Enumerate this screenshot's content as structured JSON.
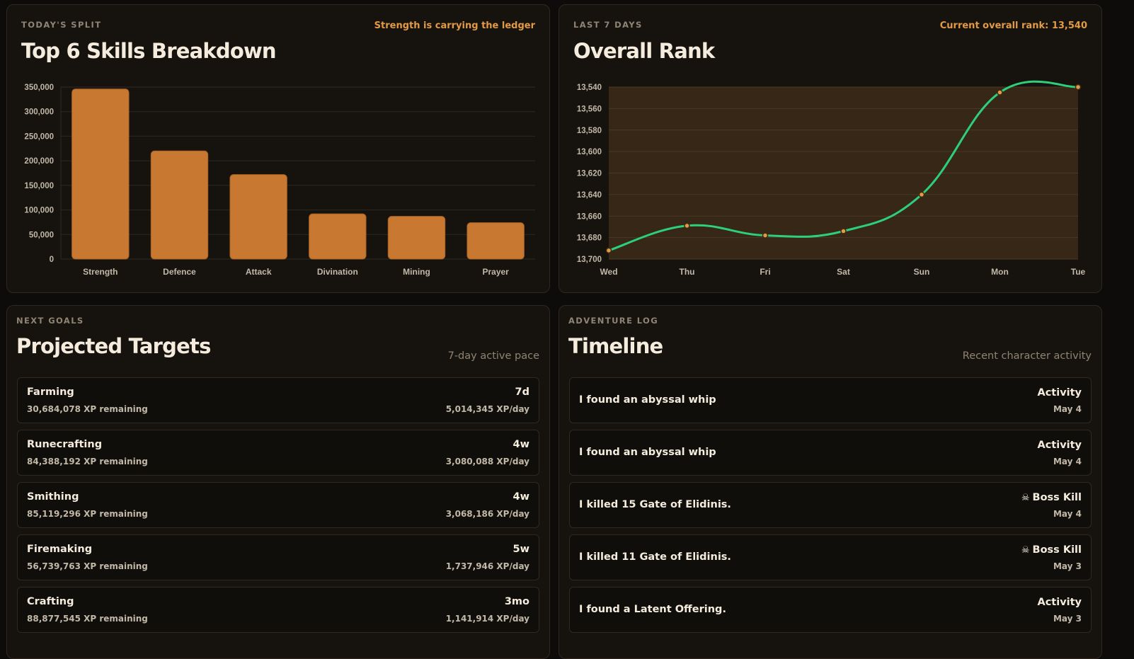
{
  "skills_panel": {
    "eyebrow": "TODAY'S SPLIT",
    "title": "Top 6 Skills Breakdown",
    "note": "Strength is carrying the ledger"
  },
  "rank_panel": {
    "eyebrow": "LAST 7 DAYS",
    "title": "Overall Rank",
    "note": "Current overall rank: 13,540"
  },
  "goals_panel": {
    "eyebrow": "NEXT GOALS",
    "title": "Projected Targets",
    "subtitle": "7-day active pace",
    "targets": [
      {
        "skill": "Farming",
        "remaining": "30,684,078 XP remaining",
        "eta": "7d",
        "rate": "5,014,345 XP/day"
      },
      {
        "skill": "Runecrafting",
        "remaining": "84,388,192 XP remaining",
        "eta": "4w",
        "rate": "3,080,088 XP/day"
      },
      {
        "skill": "Smithing",
        "remaining": "85,119,296 XP remaining",
        "eta": "4w",
        "rate": "3,068,186 XP/day"
      },
      {
        "skill": "Firemaking",
        "remaining": "56,739,763 XP remaining",
        "eta": "5w",
        "rate": "1,737,946 XP/day"
      },
      {
        "skill": "Crafting",
        "remaining": "88,877,545 XP remaining",
        "eta": "3mo",
        "rate": "1,141,914 XP/day"
      }
    ]
  },
  "log_panel": {
    "eyebrow": "ADVENTURE LOG",
    "title": "Timeline",
    "subtitle": "Recent character activity",
    "entries": [
      {
        "text": "I found an abyssal whip",
        "type": "Activity",
        "icon": "",
        "date": "May 4"
      },
      {
        "text": "I found an abyssal whip",
        "type": "Activity",
        "icon": "",
        "date": "May 4"
      },
      {
        "text": "I killed 15 Gate of Elidinis.",
        "type": "Boss Kill",
        "icon": "☠",
        "date": "May 4"
      },
      {
        "text": "I killed 11 Gate of Elidinis.",
        "type": "Boss Kill",
        "icon": "☠",
        "date": "May 3"
      },
      {
        "text": "I found a Latent Offering.",
        "type": "Activity",
        "icon": "",
        "date": "May 3"
      }
    ]
  },
  "colors": {
    "bar": "#c87830",
    "line": "#2ecf7a",
    "accent": "#e39a44",
    "fill": "#3a2a18"
  },
  "chart_data": [
    {
      "type": "bar",
      "categories": [
        "Strength",
        "Defence",
        "Attack",
        "Divination",
        "Mining",
        "Prayer"
      ],
      "values": [
        346000,
        220000,
        172000,
        92000,
        87000,
        74000
      ],
      "y_ticks": [
        "0",
        "50,000",
        "100,000",
        "150,000",
        "200,000",
        "250,000",
        "300,000",
        "350,000"
      ],
      "ylim": [
        0,
        350000
      ],
      "grid": true
    },
    {
      "type": "line",
      "categories": [
        "Wed",
        "Thu",
        "Fri",
        "Sat",
        "Sun",
        "Mon",
        "Tue"
      ],
      "values": [
        13692,
        13669,
        13678,
        13674,
        13640,
        13545,
        13540
      ],
      "y_ticks": [
        "13,540",
        "13,560",
        "13,580",
        "13,600",
        "13,620",
        "13,640",
        "13,660",
        "13,680",
        "13,700"
      ],
      "ylim": [
        13700,
        13540
      ],
      "y_reversed": true,
      "grid": true
    }
  ]
}
